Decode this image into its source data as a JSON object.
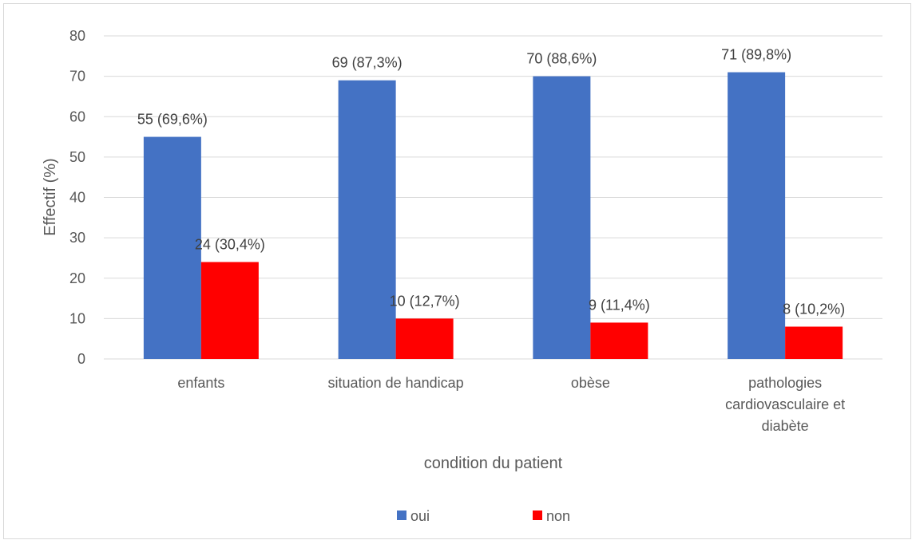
{
  "chart_data": {
    "type": "bar",
    "title": "",
    "xlabel": "condition du patient",
    "ylabel": "Effectif (%)",
    "ylim": [
      0,
      80
    ],
    "yticks": [
      0,
      10,
      20,
      30,
      40,
      50,
      60,
      70,
      80
    ],
    "categories": [
      [
        "enfants"
      ],
      [
        "situation de handicap"
      ],
      [
        "obèse"
      ],
      [
        "pathologies",
        "cardiovasculaire et",
        "diabète"
      ]
    ],
    "series": [
      {
        "name": "oui",
        "color": "#4472c4",
        "values": [
          55,
          69,
          70,
          71
        ],
        "labels": [
          "55 (69,6%)",
          "69 (87,3%)",
          "70 (88,6%)",
          "71 (89,8%)"
        ]
      },
      {
        "name": "non",
        "color": "#ff0000",
        "values": [
          24,
          10,
          9,
          8
        ],
        "labels": [
          "24 (30,4%)",
          "10 (12,7%)",
          "9 (11,4%)",
          "8 (10,2%)"
        ]
      }
    ],
    "grid": true,
    "legend_position": "bottom"
  }
}
